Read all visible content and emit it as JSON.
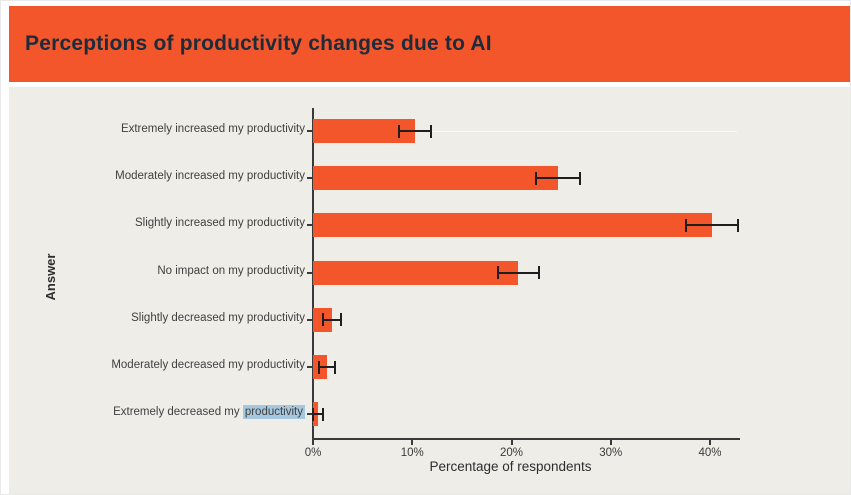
{
  "header": {
    "title": "Perceptions of productivity changes due to AI",
    "background_color": "#F3562A",
    "text_color": "#1D2B3A"
  },
  "chart_data": {
    "type": "bar",
    "orientation": "horizontal",
    "title": "Perceptions of productivity changes due to AI",
    "xlabel": "Percentage of respondents",
    "ylabel": "Answer",
    "categories": [
      "Extremely increased my productivity",
      "Moderately increased my productivity",
      "Slightly increased my productivity",
      "No impact on my productivity",
      "Slightly decreased my productivity",
      "Moderately decreased my productivity",
      "Extremely decreased my productivity"
    ],
    "values": [
      10.3,
      24.7,
      40.2,
      20.7,
      1.9,
      1.4,
      0.5
    ],
    "error_margins": [
      1.6,
      2.2,
      2.6,
      2.1,
      0.9,
      0.8,
      0.5
    ],
    "x_ticks": [
      "0%",
      "10%",
      "20%",
      "30%",
      "40%"
    ],
    "x_tick_values": [
      0,
      10,
      20,
      30,
      40
    ],
    "xlim": [
      0,
      43
    ],
    "grid": "off",
    "legend": "none",
    "bar_color": "#F3562A",
    "error_bar_color": "#1F1F1F",
    "axis_color": "#3A3A3A",
    "plot_background_color": "#EFEDE8",
    "hover_gridline_row": 0,
    "text_selection": {
      "row": 6,
      "word": "productivity",
      "highlight_color": "#A5C8DF"
    }
  }
}
